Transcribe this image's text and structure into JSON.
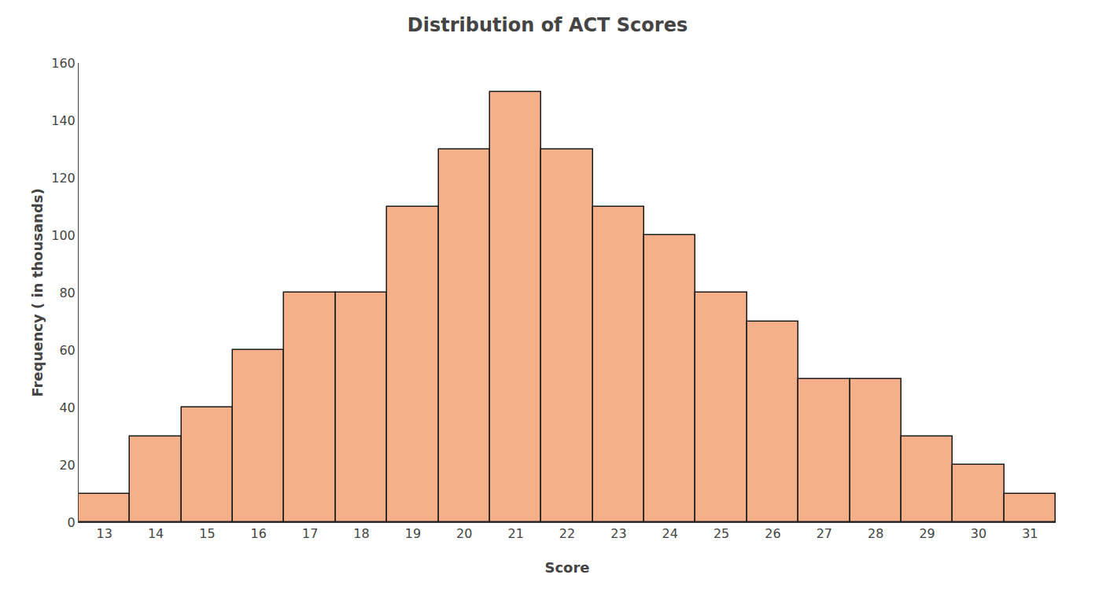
{
  "chart_data": {
    "type": "bar",
    "title": "Distribution of ACT Scores",
    "xlabel": "Score",
    "ylabel": "Frequency ( in thousands)",
    "x": [
      13,
      14,
      15,
      16,
      17,
      18,
      19,
      20,
      21,
      22,
      23,
      24,
      25,
      26,
      27,
      28,
      29,
      30,
      31
    ],
    "values": [
      10,
      30,
      40,
      60,
      80,
      80,
      110,
      130,
      150,
      130,
      110,
      100,
      80,
      70,
      50,
      50,
      30,
      20,
      10
    ],
    "color": "#F5B08A",
    "xlim": [
      12.5,
      31.5
    ],
    "xticks": [
      13,
      14,
      15,
      16,
      17,
      18,
      19,
      20,
      21,
      22,
      23,
      24,
      25,
      26,
      27,
      28,
      29,
      30,
      31
    ],
    "ylim": [
      0,
      160
    ],
    "yticks": [
      0,
      20,
      40,
      60,
      80,
      100,
      120,
      140,
      160
    ],
    "grid": false
  }
}
